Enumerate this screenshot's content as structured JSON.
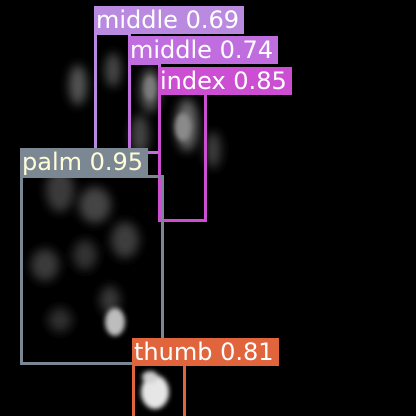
{
  "colors": {
    "background": "#000000",
    "label_text": "#ffffff"
  },
  "detections": [
    {
      "class": "middle",
      "score": "0.69",
      "text": "middle 0.69",
      "color": "#b98ae0",
      "text_color": "#ffffff"
    },
    {
      "class": "middle",
      "score": "0.74",
      "text": "middle 0.74",
      "color": "#c06de0",
      "text_color": "#ffffff"
    },
    {
      "class": "index",
      "score": "0.85",
      "text": "index 0.85",
      "color": "#cc4fd3",
      "text_color": "#ffffff"
    },
    {
      "class": "palm",
      "score": "0.95",
      "text": "palm 0.95",
      "color": "#7b8893",
      "text_color": "#fffdd8"
    },
    {
      "class": "thumb",
      "score": "0.81",
      "text": "thumb 0.81",
      "color": "#e0643c",
      "text_color": "#ffffff"
    }
  ]
}
